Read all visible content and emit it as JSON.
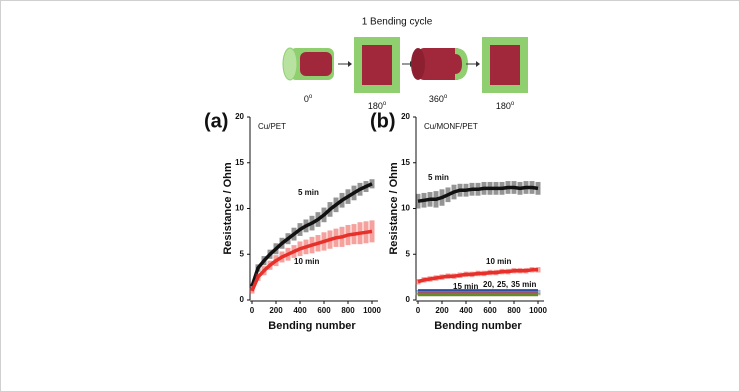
{
  "diagram": {
    "title": "1 Bending cycle",
    "angles": [
      {
        "value": "0",
        "sup": "o"
      },
      {
        "value": "180",
        "sup": "o"
      },
      {
        "value": "360",
        "sup": "o"
      },
      {
        "value": "180",
        "sup": "o"
      }
    ]
  },
  "chart_data": [
    {
      "type": "line",
      "panel_label": "(a)",
      "title": "Cu/PET",
      "x_label": "Bending number",
      "y_label": "Resistance / Ohm",
      "x": [
        0,
        50,
        100,
        150,
        200,
        250,
        300,
        350,
        400,
        450,
        500,
        550,
        600,
        650,
        700,
        750,
        800,
        850,
        900,
        950,
        1000
      ],
      "xlim": [
        0,
        1050
      ],
      "xticks": [
        0,
        200,
        400,
        600,
        800,
        1000
      ],
      "ylim": [
        0,
        20
      ],
      "yticks": [
        0,
        5,
        10,
        15,
        20
      ],
      "series": [
        {
          "name": "5 min",
          "color": "#111111",
          "values": [
            1.5,
            3.5,
            4.3,
            5.0,
            5.6,
            6.2,
            6.7,
            7.2,
            7.7,
            8.1,
            8.4,
            8.8,
            9.3,
            9.9,
            10.4,
            10.9,
            11.3,
            11.7,
            12.1,
            12.4,
            12.7
          ],
          "errors": [
            0.3,
            0.4,
            0.5,
            0.5,
            0.6,
            0.6,
            0.6,
            0.7,
            0.7,
            0.7,
            0.8,
            0.8,
            0.8,
            0.8,
            0.8,
            0.8,
            0.8,
            0.8,
            0.7,
            0.6,
            0.5
          ]
        },
        {
          "name": "10 min",
          "color": "#e8302a",
          "values": [
            1.0,
            2.5,
            3.2,
            3.8,
            4.3,
            4.7,
            5.0,
            5.3,
            5.6,
            5.8,
            6.0,
            6.2,
            6.4,
            6.6,
            6.8,
            6.9,
            7.1,
            7.2,
            7.3,
            7.4,
            7.5
          ],
          "errors": [
            0.3,
            0.4,
            0.5,
            0.5,
            0.6,
            0.6,
            0.7,
            0.7,
            0.8,
            0.8,
            0.9,
            0.9,
            1.0,
            1.0,
            1.0,
            1.1,
            1.1,
            1.1,
            1.2,
            1.2,
            1.2
          ]
        }
      ]
    },
    {
      "type": "line",
      "panel_label": "(b)",
      "title": "Cu/MONF/PET",
      "x_label": "Bending number",
      "y_label": "Resistance / Ohm",
      "x": [
        0,
        50,
        100,
        150,
        200,
        250,
        300,
        350,
        400,
        450,
        500,
        550,
        600,
        650,
        700,
        750,
        800,
        850,
        900,
        950,
        1000
      ],
      "xlim": [
        0,
        1050
      ],
      "xticks": [
        0,
        200,
        400,
        600,
        800,
        1000
      ],
      "ylim": [
        0,
        20
      ],
      "yticks": [
        0,
        5,
        10,
        15,
        20
      ],
      "series": [
        {
          "name": "5 min",
          "color": "#111111",
          "values": [
            10.8,
            10.9,
            11.0,
            11.0,
            11.2,
            11.5,
            11.8,
            12.0,
            12.0,
            12.1,
            12.1,
            12.2,
            12.2,
            12.2,
            12.2,
            12.3,
            12.3,
            12.2,
            12.3,
            12.3,
            12.2
          ],
          "errors": [
            0.8,
            0.8,
            0.8,
            0.9,
            0.9,
            0.8,
            0.8,
            0.7,
            0.7,
            0.7,
            0.7,
            0.7,
            0.7,
            0.7,
            0.7,
            0.7,
            0.7,
            0.7,
            0.7,
            0.7,
            0.7
          ]
        },
        {
          "name": "10 min",
          "color": "#e8302a",
          "values": [
            2.0,
            2.2,
            2.3,
            2.4,
            2.5,
            2.6,
            2.6,
            2.7,
            2.8,
            2.8,
            2.9,
            2.9,
            3.0,
            3.0,
            3.1,
            3.1,
            3.2,
            3.2,
            3.2,
            3.3,
            3.3
          ],
          "errors": [
            0.3,
            0.3,
            0.3,
            0.3,
            0.3,
            0.3,
            0.3,
            0.3,
            0.3,
            0.3,
            0.3,
            0.3,
            0.3,
            0.3,
            0.3,
            0.3,
            0.3,
            0.3,
            0.3,
            0.3,
            0.3
          ]
        },
        {
          "name": "15 min",
          "color": "#2b4fa0",
          "values": [
            1.0,
            1.0,
            1.0,
            1.0,
            1.0,
            1.0,
            1.0,
            1.0,
            1.0,
            1.0,
            1.0,
            1.0,
            1.0,
            1.0,
            1.0,
            1.0,
            1.0,
            1.0,
            1.0,
            1.0,
            1.0
          ],
          "errors": [
            0.1,
            0.1,
            0.1,
            0.1,
            0.1,
            0.1,
            0.1,
            0.1,
            0.1,
            0.1,
            0.1,
            0.1,
            0.1,
            0.1,
            0.1,
            0.1,
            0.1,
            0.1,
            0.1,
            0.1,
            0.1
          ]
        },
        {
          "name": "20,",
          "color": "#2a9d8f",
          "values": [
            0.8,
            0.8,
            0.8,
            0.8,
            0.8,
            0.8,
            0.8,
            0.8,
            0.8,
            0.8,
            0.8,
            0.8,
            0.8,
            0.8,
            0.8,
            0.8,
            0.8,
            0.8,
            0.8,
            0.8,
            0.8
          ],
          "errors": [
            0.1,
            0.1,
            0.1,
            0.1,
            0.1,
            0.1,
            0.1,
            0.1,
            0.1,
            0.1,
            0.1,
            0.1,
            0.1,
            0.1,
            0.1,
            0.1,
            0.1,
            0.1,
            0.1,
            0.1,
            0.1
          ]
        },
        {
          "name": "25,",
          "color": "#b04080",
          "values": [
            0.7,
            0.7,
            0.7,
            0.7,
            0.7,
            0.7,
            0.7,
            0.7,
            0.7,
            0.7,
            0.7,
            0.7,
            0.7,
            0.7,
            0.7,
            0.7,
            0.7,
            0.7,
            0.7,
            0.7,
            0.7
          ],
          "errors": [
            0.1,
            0.1,
            0.1,
            0.1,
            0.1,
            0.1,
            0.1,
            0.1,
            0.1,
            0.1,
            0.1,
            0.1,
            0.1,
            0.1,
            0.1,
            0.1,
            0.1,
            0.1,
            0.1,
            0.1,
            0.1
          ]
        },
        {
          "name": "35 min",
          "color": "#6a8a2a",
          "values": [
            0.6,
            0.6,
            0.6,
            0.6,
            0.6,
            0.6,
            0.6,
            0.6,
            0.6,
            0.6,
            0.6,
            0.6,
            0.6,
            0.6,
            0.6,
            0.6,
            0.6,
            0.6,
            0.6,
            0.6,
            0.6
          ],
          "errors": [
            0.1,
            0.1,
            0.1,
            0.1,
            0.1,
            0.1,
            0.1,
            0.1,
            0.1,
            0.1,
            0.1,
            0.1,
            0.1,
            0.1,
            0.1,
            0.1,
            0.1,
            0.1,
            0.1,
            0.1,
            0.1
          ]
        }
      ]
    }
  ]
}
